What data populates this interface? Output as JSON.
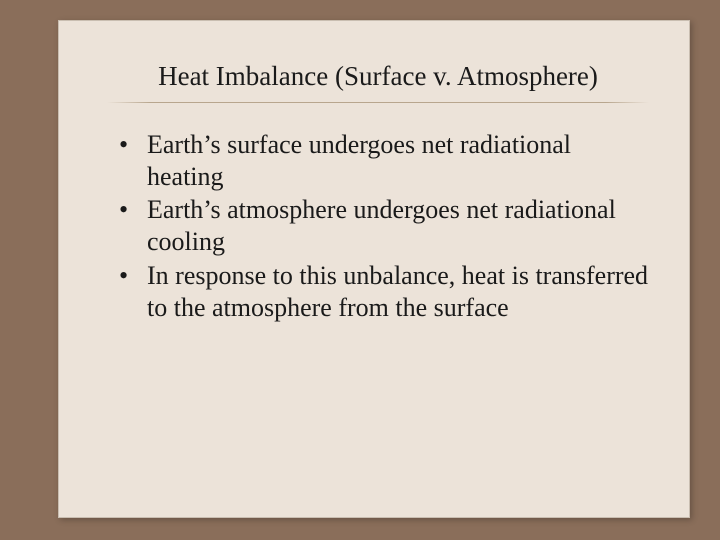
{
  "slide": {
    "title": "Heat Imbalance (Surface v. Atmosphere)",
    "bullets": [
      "Earth’s surface undergoes net radiational heating",
      "Earth’s atmosphere undergoes net radiational cooling",
      "In response to this unbalance, heat is transferred to the atmosphere from the surface"
    ],
    "colors": {
      "background_outer": "#8a6e5a",
      "background_slide": "#ece3d9",
      "text": "#1a1a1a",
      "divider": "#b8a68e"
    },
    "typography": {
      "title_fontsize": 27,
      "bullet_fontsize": 26,
      "font_family": "Times New Roman"
    }
  }
}
